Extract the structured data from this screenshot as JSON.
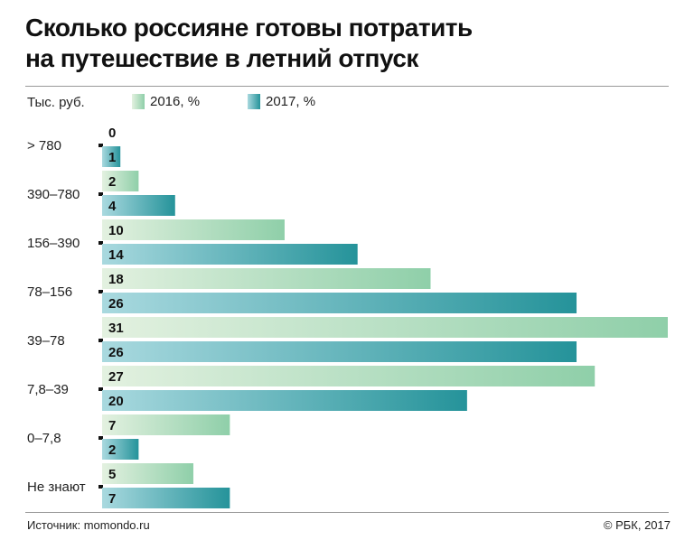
{
  "header": {
    "title_line1": "Сколько россияне готовы потратить",
    "title_line2": "на путешествие в летний отпуск"
  },
  "legend": {
    "unit_label": "Тыс. руб.",
    "items": [
      {
        "label": "2016, %",
        "color_light": "#e3f1e0",
        "color_dark": "#8fcfa9"
      },
      {
        "label": "2017, %",
        "color_light": "#a9d9df",
        "color_dark": "#25939a"
      }
    ]
  },
  "footer": {
    "source": "Источник: momondo.ru",
    "copyright": "© РБК, 2017"
  },
  "chart_data": {
    "type": "bar",
    "orientation": "horizontal",
    "title": "Сколько россияне готовы потратить на путешествие в летний отпуск",
    "ylabel": "Тыс. руб.",
    "categories": [
      "> 780",
      "390–780",
      "156–390",
      "78–156",
      "39–78",
      "7,8–39",
      "0–7,8",
      "Не знают"
    ],
    "series": [
      {
        "name": "2016, %",
        "values": [
          0,
          2,
          10,
          18,
          31,
          27,
          7,
          5
        ]
      },
      {
        "name": "2017, %",
        "values": [
          1,
          4,
          14,
          26,
          26,
          20,
          2,
          7
        ]
      }
    ],
    "xlim": [
      0,
      31
    ],
    "grid": false,
    "legend_position": "top"
  }
}
